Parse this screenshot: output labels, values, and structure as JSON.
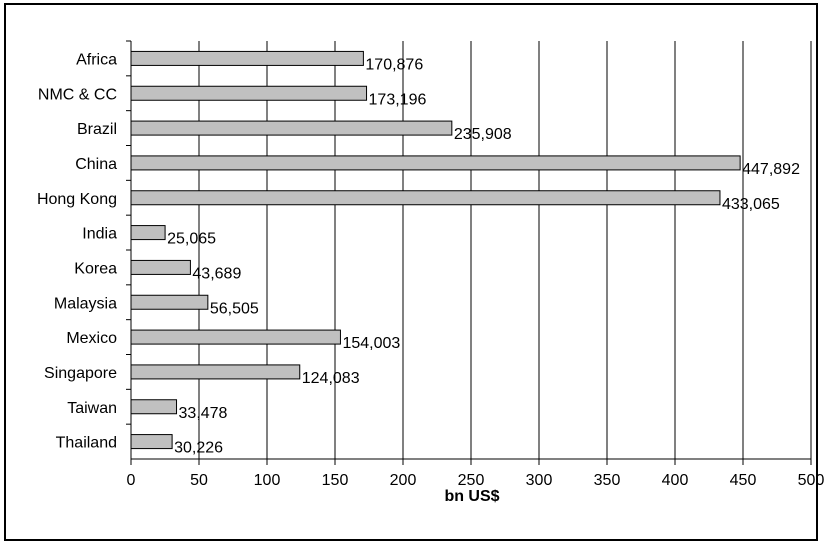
{
  "chart_data": {
    "type": "bar",
    "orientation": "horizontal",
    "categories": [
      "Africa",
      "NMC & CC",
      "Brazil",
      "China",
      "Hong Kong",
      "India",
      "Korea",
      "Malaysia",
      "Mexico",
      "Singapore",
      "Taiwan",
      "Thailand"
    ],
    "values": [
      170.876,
      173.196,
      235.908,
      447.892,
      433.065,
      25.065,
      43.689,
      56.505,
      154.003,
      124.083,
      33.478,
      30.226
    ],
    "data_labels": [
      "170,876",
      "173,196",
      "235,908",
      "447,892",
      "433,065",
      "25,065",
      "43,689",
      "56,505",
      "154,003",
      "124,083",
      "33,478",
      "30,226"
    ],
    "xticks": [
      "0",
      "50",
      "100",
      "150",
      "200",
      "250",
      "300",
      "350",
      "400",
      "450",
      "500"
    ],
    "xlim": [
      0,
      500
    ],
    "xlabel": "bn US$",
    "grid": "vertical",
    "legend": "none",
    "bar_fill": "#c0c0c0",
    "bar_stroke": "#000000",
    "grid_color": "#000000"
  }
}
